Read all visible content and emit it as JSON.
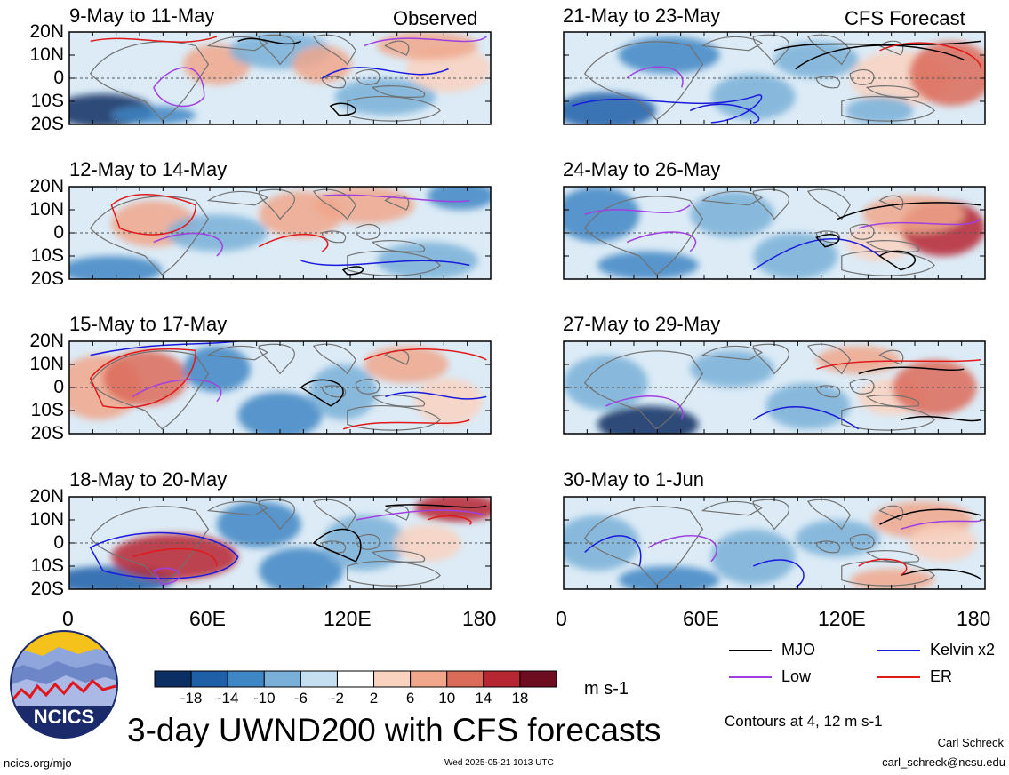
{
  "figure": {
    "title": "3-day UWND200 with CFS forecasts",
    "left_column_label": "Observed",
    "right_column_label": "CFS Forecast"
  },
  "panels": {
    "left": [
      {
        "period": "9-May to 11-May"
      },
      {
        "period": "12-May to 14-May"
      },
      {
        "period": "15-May to 17-May"
      },
      {
        "period": "18-May to 20-May"
      }
    ],
    "right": [
      {
        "period": "21-May to 23-May"
      },
      {
        "period": "24-May to 26-May"
      },
      {
        "period": "27-May to 29-May"
      },
      {
        "period": "30-May to 1-Jun"
      }
    ]
  },
  "lat_labels": [
    "20N",
    "10N",
    "0",
    "10S",
    "20S"
  ],
  "lon_labels": [
    "0",
    "60E",
    "120E",
    "180"
  ],
  "colorbar": {
    "ticks": [
      "-18",
      "-14",
      "-10",
      "-6",
      "-2",
      "2",
      "6",
      "10",
      "14",
      "18"
    ],
    "units": "m s-1",
    "colors": [
      "#0b2e63",
      "#1f5fa8",
      "#3f86c4",
      "#7ab0d8",
      "#c5def0",
      "#ffffff",
      "#f9d2c0",
      "#f0a78c",
      "#dc6b5a",
      "#b72733",
      "#6e0d1f"
    ]
  },
  "legend": {
    "items": [
      {
        "label": "MJO",
        "color": "#000000"
      },
      {
        "label": "Kelvin x2",
        "color": "#1a1adc"
      },
      {
        "label": "Low",
        "color": "#a040e0"
      },
      {
        "label": "ER",
        "color": "#e01a1a"
      }
    ],
    "contours_note": "Contours at 4, 12 m s-1"
  },
  "logo": {
    "text": "NCICS"
  },
  "credits": {
    "website": "ncics.org/mjo",
    "timestamp": "Wed 2025-05-21 1013 UTC",
    "author": "Carl Schreck",
    "email": "carl_schreck@ncsu.edu"
  }
}
